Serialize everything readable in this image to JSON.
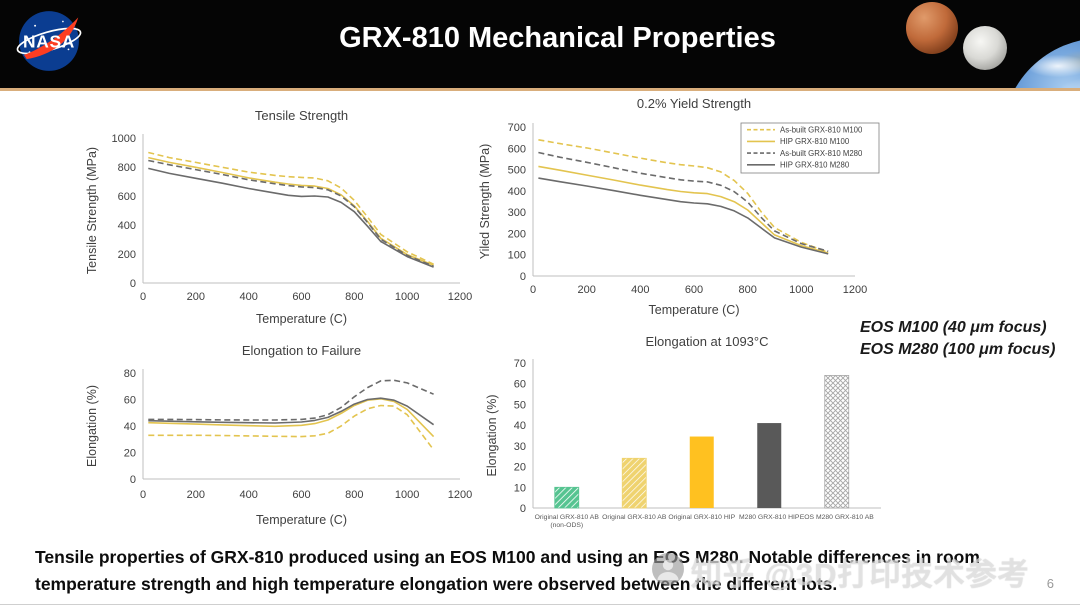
{
  "header": {
    "title": "GRX-810 Mechanical Properties",
    "logo_text": "NASA"
  },
  "annotations": {
    "eos_line1": "EOS M100 (40 μm focus)",
    "eos_line2": "EOS M280 (100 μm focus)"
  },
  "caption": {
    "text": "Tensile properties of GRX-810 produced using an EOS M100 and using an EOS M280. Notable differences in room temperature strength and high temperature elongation were observed between the different lots."
  },
  "watermark": {
    "text": "知乎 @3D打印技术参考"
  },
  "page_number": "6",
  "colors": {
    "gold": "#E3C44F",
    "gray": "#6B6B6B",
    "axis": "#BFBFBF",
    "text": "#404040",
    "bar_green": "#56C491",
    "bar_lightgold": "#EFD36F",
    "bar_gold": "#FFC120",
    "bar_darkgray": "#595959",
    "hatch_line": "#A6A6A6"
  },
  "chart_data": [
    {
      "id": "tensile-strength",
      "type": "line",
      "title": "Tensile Strength",
      "xlabel": "Temperature (C)",
      "ylabel": "Tensile Strength (MPa)",
      "xlim": [
        0,
        1200
      ],
      "ylim": [
        0,
        1000
      ],
      "xticks": [
        0,
        200,
        400,
        600,
        800,
        1000,
        1200
      ],
      "yticks": [
        0,
        200,
        400,
        600,
        800,
        1000
      ],
      "grid": false,
      "legend": false,
      "x": [
        20,
        100,
        200,
        300,
        400,
        500,
        550,
        600,
        650,
        700,
        750,
        800,
        850,
        900,
        1000,
        1100
      ],
      "series": [
        {
          "name": "As-built GRX-810 M100",
          "color": "gold",
          "dashed": true,
          "values": [
            900,
            865,
            832,
            798,
            765,
            742,
            733,
            728,
            724,
            705,
            655,
            570,
            455,
            335,
            215,
            130
          ]
        },
        {
          "name": "HIP GRX-810 M100",
          "color": "gold",
          "dashed": false,
          "values": [
            865,
            832,
            798,
            762,
            725,
            695,
            683,
            673,
            668,
            652,
            608,
            532,
            425,
            308,
            196,
            122
          ]
        },
        {
          "name": "As-built GRX-810 M280",
          "color": "gray",
          "dashed": true,
          "values": [
            845,
            815,
            782,
            748,
            712,
            684,
            672,
            663,
            658,
            643,
            600,
            526,
            418,
            302,
            190,
            116
          ]
        },
        {
          "name": "HIP GRX-810 M280",
          "color": "gray",
          "dashed": false,
          "values": [
            790,
            756,
            722,
            688,
            652,
            620,
            605,
            597,
            600,
            593,
            556,
            492,
            392,
            286,
            182,
            110
          ]
        }
      ]
    },
    {
      "id": "yield-strength",
      "type": "line",
      "title": "0.2% Yield Strength",
      "xlabel": "Temperature (C)",
      "ylabel": "Yiled Strength (MPa)",
      "xlim": [
        0,
        1200
      ],
      "ylim": [
        0,
        700
      ],
      "xticks": [
        0,
        200,
        400,
        600,
        800,
        1000,
        1200
      ],
      "yticks": [
        0,
        100,
        200,
        300,
        400,
        500,
        600,
        700
      ],
      "grid": false,
      "legend": true,
      "legend_position": "top-right",
      "x": [
        20,
        100,
        200,
        300,
        400,
        500,
        550,
        600,
        650,
        700,
        750,
        800,
        850,
        900,
        1000,
        1100
      ],
      "series": [
        {
          "name": "As-built GRX-810 M100",
          "color": "gold",
          "dashed": true,
          "values": [
            640,
            622,
            602,
            578,
            554,
            532,
            523,
            517,
            509,
            489,
            448,
            388,
            302,
            228,
            158,
            112
          ]
        },
        {
          "name": "HIP GRX-810 M100",
          "color": "gold",
          "dashed": false,
          "values": [
            515,
            497,
            474,
            451,
            427,
            406,
            397,
            391,
            387,
            373,
            349,
            310,
            252,
            193,
            143,
            108
          ]
        },
        {
          "name": "As-built GRX-810 M280",
          "color": "gray",
          "dashed": true,
          "values": [
            580,
            558,
            534,
            509,
            483,
            462,
            452,
            446,
            442,
            426,
            396,
            347,
            276,
            212,
            152,
            116
          ]
        },
        {
          "name": "HIP GRX-810 M280",
          "color": "gray",
          "dashed": false,
          "values": [
            460,
            443,
            423,
            401,
            379,
            359,
            349,
            343,
            339,
            327,
            306,
            273,
            226,
            179,
            136,
            104
          ]
        }
      ]
    },
    {
      "id": "elongation-to-failure",
      "type": "line",
      "title": "Elongation to Failure",
      "xlabel": "Temperature (C)",
      "ylabel": "Elongation (%)",
      "xlim": [
        0,
        1200
      ],
      "ylim": [
        0,
        80
      ],
      "xticks": [
        0,
        200,
        400,
        600,
        800,
        1000,
        1200
      ],
      "yticks": [
        0,
        20,
        40,
        60,
        80
      ],
      "grid": false,
      "legend": false,
      "x": [
        20,
        100,
        200,
        300,
        400,
        500,
        600,
        650,
        700,
        750,
        800,
        850,
        900,
        950,
        1000,
        1100
      ],
      "series": [
        {
          "name": "As-built GRX-810 M100",
          "color": "gold",
          "dashed": true,
          "values": [
            33,
            33,
            33,
            32.8,
            32.5,
            32.2,
            32,
            32.6,
            34.5,
            40,
            47.5,
            53,
            55.5,
            55,
            48.5,
            22
          ]
        },
        {
          "name": "HIP GRX-810 M100",
          "color": "gold",
          "dashed": false,
          "values": [
            42.5,
            42,
            41.4,
            40.8,
            40.2,
            39.8,
            40.5,
            41.8,
            44.5,
            49.5,
            55.5,
            59.5,
            60.5,
            58.5,
            52.5,
            32
          ]
        },
        {
          "name": "As-built GRX-810 M280",
          "color": "gray",
          "dashed": true,
          "values": [
            45,
            45,
            44.8,
            44.6,
            44.5,
            44.5,
            45,
            46,
            48.5,
            54,
            62,
            69,
            74,
            74.5,
            72.5,
            64
          ]
        },
        {
          "name": "HIP GRX-810 M280",
          "color": "gray",
          "dashed": false,
          "values": [
            44,
            43.6,
            43.2,
            42.8,
            42.5,
            42.3,
            43,
            44.2,
            46.5,
            51,
            56.5,
            60,
            61,
            59.5,
            55,
            41
          ]
        }
      ]
    },
    {
      "id": "elongation-1093",
      "type": "bar",
      "title": "Elongation at 1093°C",
      "xlabel": "",
      "ylabel": "Elongation (%)",
      "ylim": [
        0,
        70
      ],
      "yticks": [
        0,
        10,
        20,
        30,
        40,
        50,
        60,
        70
      ],
      "grid": false,
      "legend": false,
      "bars": [
        {
          "label_lines": [
            "Original GRX-810 AB",
            "(non-ODS)"
          ],
          "value": 10,
          "style": "green-hatch"
        },
        {
          "label_lines": [
            "Original GRX-810 AB"
          ],
          "value": 24,
          "style": "gold-hatch"
        },
        {
          "label_lines": [
            "Original GRX-810 HIP"
          ],
          "value": 34.5,
          "style": "gold-solid"
        },
        {
          "label_lines": [
            "M280 GRX-810 HIP"
          ],
          "value": 41,
          "style": "darkgray-solid"
        },
        {
          "label_lines": [
            "EOS M280 GRX-810 AB"
          ],
          "value": 64,
          "style": "gray-crosshatch"
        }
      ]
    }
  ]
}
